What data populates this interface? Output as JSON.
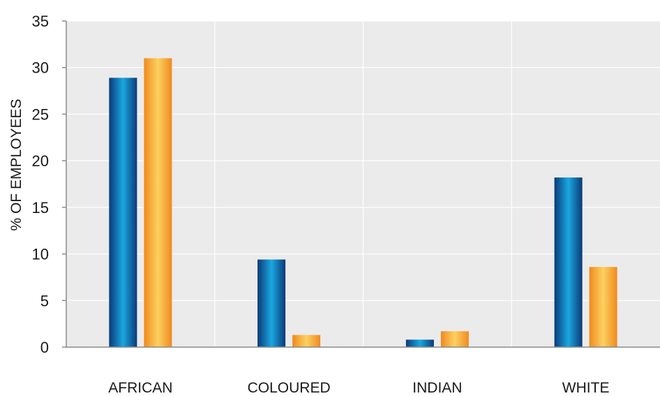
{
  "chart_data": {
    "type": "bar",
    "title": "",
    "xlabel": "",
    "ylabel": "% OF EMPLOYEES",
    "ylim": [
      0,
      35
    ],
    "yticks": [
      0,
      5,
      10,
      15,
      20,
      25,
      30,
      35
    ],
    "ytick_labels": [
      "0",
      "5",
      "10",
      "15",
      "20",
      "25",
      "30",
      "35"
    ],
    "categories": [
      "AFRICAN",
      "COLOURED",
      "INDIAN",
      "WHITE"
    ],
    "grid": true,
    "legend": "none",
    "series": [
      {
        "values": [
          28.9,
          9.4,
          0.8,
          18.2
        ],
        "color": "#0a5ea8"
      },
      {
        "values": [
          31.0,
          1.3,
          1.7,
          8.6
        ],
        "color": "#f7a12f"
      }
    ],
    "colors": {
      "plot_background": "#ebebec",
      "gridline": "#ffffff",
      "axis": "#8a8a8a"
    }
  }
}
